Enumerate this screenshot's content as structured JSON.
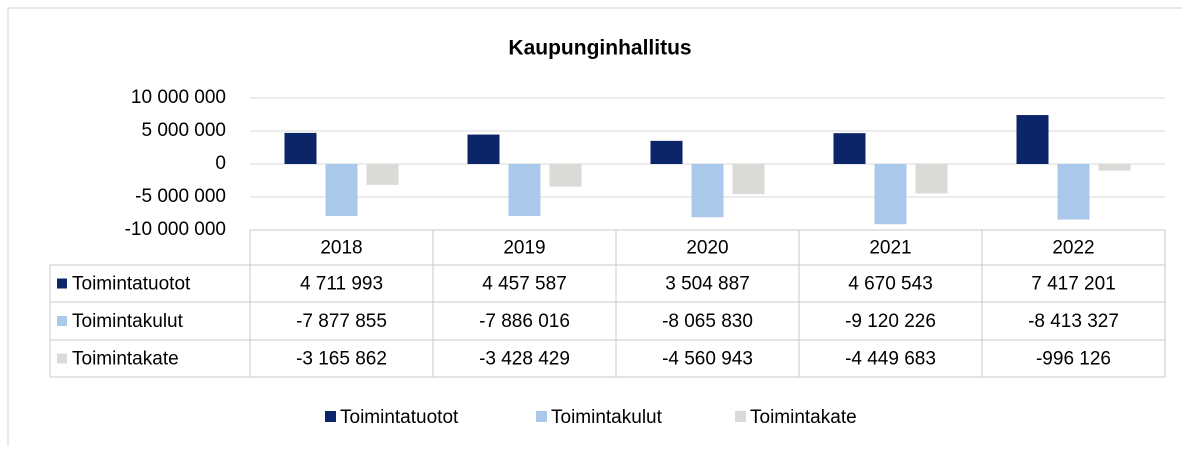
{
  "chart_data": {
    "type": "bar",
    "title": "Kaupunginhallitus",
    "categories": [
      "2018",
      "2019",
      "2020",
      "2021",
      "2022"
    ],
    "series": [
      {
        "name": "Toimintatuotot",
        "color": "#0c2468",
        "values": [
          4711993,
          4457587,
          3504887,
          4670543,
          7417201
        ],
        "value_labels": [
          "4 711 993",
          "4 457 587",
          "3 504 887",
          "4 670 543",
          "7 417 201"
        ]
      },
      {
        "name": "Toimintakulut",
        "color": "#a9c8ea",
        "values": [
          -7877855,
          -7886016,
          -8065830,
          -9120226,
          -8413327
        ],
        "value_labels": [
          "-7 877 855",
          "-7 886 016",
          "-8 065 830",
          "-9 120 226",
          "-8 413 327"
        ]
      },
      {
        "name": "Toimintakate",
        "color": "#dadad7",
        "values": [
          -3165862,
          -3428429,
          -4560943,
          -4449683,
          -996126
        ],
        "value_labels": [
          "-3 165 862",
          "-3 428 429",
          "-4 560 943",
          "-4 449 683",
          "-996 126"
        ]
      }
    ],
    "ylim": [
      -10000000,
      10000000
    ],
    "yticks": [
      {
        "value": -10000000,
        "label": "-10 000 000"
      },
      {
        "value": -5000000,
        "label": "-5 000 000"
      },
      0,
      {
        "value": 5000000,
        "label": "5 000 000"
      },
      {
        "value": 10000000,
        "label": "10 000 000"
      }
    ],
    "grid": true,
    "legend": "bottom"
  }
}
